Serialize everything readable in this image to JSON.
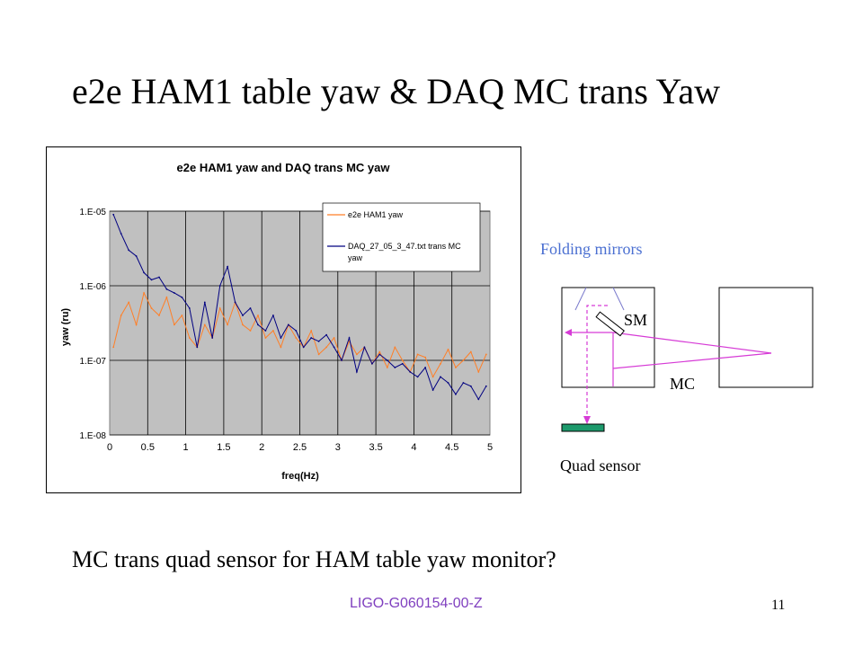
{
  "slide": {
    "title": "e2e HAM1 table yaw & DAQ MC trans Yaw",
    "question": "MC trans quad sensor for HAM table yaw monitor?",
    "footer_id": "LIGO-G060154-00-Z",
    "page_number": "11"
  },
  "diagram": {
    "folding_mirrors_label": "Folding mirrors",
    "sm_label": "SM",
    "mc_label": "MC",
    "quad_sensor_label": "Quad sensor",
    "colors": {
      "beam": "#d63bd6",
      "folding_label": "#4a6fd1",
      "sensor": "#1d9a6c"
    }
  },
  "chart_data": {
    "type": "line",
    "title": "e2e HAM1 yaw and DAQ trans MC yaw",
    "xlabel": "freq(Hz)",
    "ylabel": "yaw (ru)",
    "xlim": [
      0,
      5
    ],
    "ylim": [
      1e-08,
      1e-05
    ],
    "yscale": "log",
    "x_ticks": [
      "0",
      "0.5",
      "1",
      "1.5",
      "2",
      "2.5",
      "3",
      "3.5",
      "4",
      "4.5",
      "5"
    ],
    "y_ticks": [
      "1.E-08",
      "1.E-07",
      "1.E-06",
      "1.E-05"
    ],
    "grid": true,
    "legend": "top-right",
    "plot_background": "#c0c0c0",
    "series": [
      {
        "name": "e2e HAM1 yaw",
        "color": "#ff7f27",
        "x": [
          0.05,
          0.15,
          0.25,
          0.35,
          0.45,
          0.55,
          0.65,
          0.75,
          0.85,
          0.95,
          1.05,
          1.15,
          1.25,
          1.35,
          1.45,
          1.55,
          1.65,
          1.75,
          1.85,
          1.95,
          2.05,
          2.15,
          2.25,
          2.35,
          2.45,
          2.55,
          2.65,
          2.75,
          2.85,
          2.95,
          3.05,
          3.15,
          3.25,
          3.35,
          3.45,
          3.55,
          3.65,
          3.75,
          3.85,
          3.95,
          4.05,
          4.15,
          4.25,
          4.35,
          4.45,
          4.55,
          4.65,
          4.75,
          4.85,
          4.95
        ],
        "y": [
          1.5e-07,
          4e-07,
          6e-07,
          3e-07,
          8e-07,
          5e-07,
          4e-07,
          7e-07,
          3e-07,
          4e-07,
          2e-07,
          1.5e-07,
          3e-07,
          2e-07,
          5e-07,
          3e-07,
          6e-07,
          3e-07,
          2.5e-07,
          4e-07,
          2e-07,
          2.5e-07,
          1.5e-07,
          3e-07,
          2e-07,
          1.5e-07,
          2.5e-07,
          1.2e-07,
          1.5e-07,
          2e-07,
          1e-07,
          1.8e-07,
          1.2e-07,
          1.5e-07,
          9e-08,
          1.3e-07,
          8e-08,
          1.5e-07,
          1e-07,
          7e-08,
          1.2e-07,
          1.1e-07,
          6e-08,
          9e-08,
          1.4e-07,
          8e-08,
          1e-07,
          1.3e-07,
          7e-08,
          1.2e-07
        ]
      },
      {
        "name": "DAQ_27_05_3_47.txt trans MC yaw",
        "color": "#000080",
        "x": [
          0.05,
          0.15,
          0.25,
          0.35,
          0.45,
          0.55,
          0.65,
          0.75,
          0.85,
          0.95,
          1.05,
          1.15,
          1.25,
          1.35,
          1.45,
          1.55,
          1.65,
          1.75,
          1.85,
          1.95,
          2.05,
          2.15,
          2.25,
          2.35,
          2.45,
          2.55,
          2.65,
          2.75,
          2.85,
          2.95,
          3.05,
          3.15,
          3.25,
          3.35,
          3.45,
          3.55,
          3.65,
          3.75,
          3.85,
          3.95,
          4.05,
          4.15,
          4.25,
          4.35,
          4.45,
          4.55,
          4.65,
          4.75,
          4.85,
          4.95
        ],
        "y": [
          9e-06,
          5e-06,
          3e-06,
          2.5e-06,
          1.5e-06,
          1.2e-06,
          1.3e-06,
          9e-07,
          8e-07,
          7e-07,
          5e-07,
          1.5e-07,
          6e-07,
          2e-07,
          1e-06,
          1.8e-06,
          6e-07,
          4e-07,
          5e-07,
          3e-07,
          2.5e-07,
          4e-07,
          2e-07,
          3e-07,
          2.5e-07,
          1.5e-07,
          2e-07,
          1.8e-07,
          2.2e-07,
          1.5e-07,
          1e-07,
          2e-07,
          7e-08,
          1.5e-07,
          9e-08,
          1.2e-07,
          1e-07,
          8e-08,
          9e-08,
          7e-08,
          6e-08,
          8e-08,
          4e-08,
          6e-08,
          5e-08,
          3.5e-08,
          5e-08,
          4.5e-08,
          3e-08,
          4.5e-08
        ]
      }
    ]
  }
}
